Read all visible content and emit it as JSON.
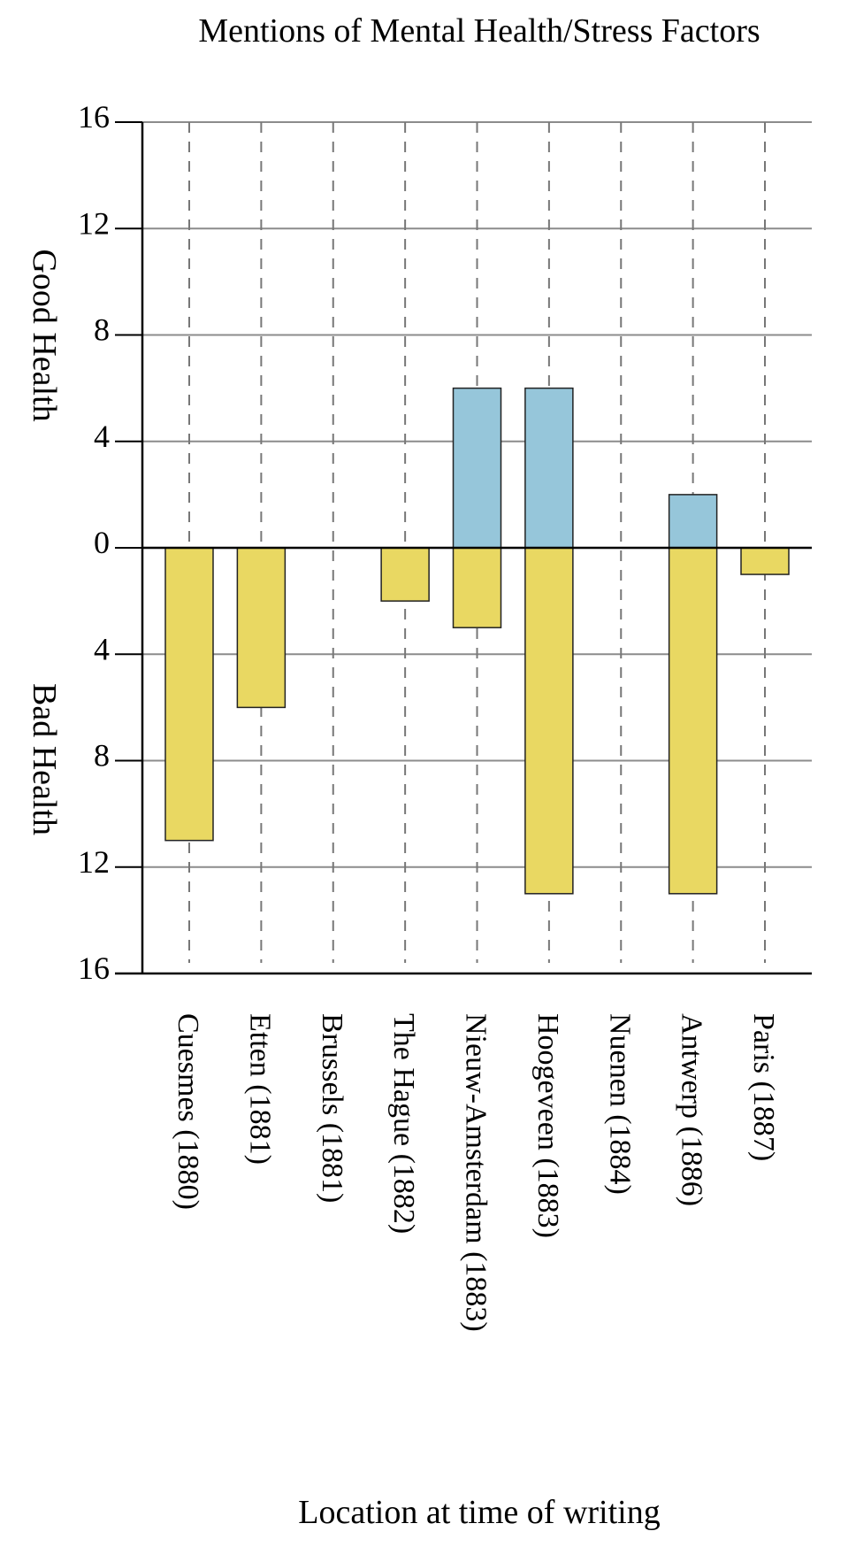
{
  "chart_data": {
    "type": "bar",
    "title": "Mentions of Mental Health/Stress Factors",
    "xlabel": "Location at time of writing",
    "ylabel_top": "Good Health",
    "ylabel_bottom": "Bad Health",
    "ylim": [
      -16,
      16
    ],
    "yticks": [
      16,
      12,
      8,
      4,
      0,
      -4,
      -8,
      -12,
      -16
    ],
    "ytick_labels": [
      "16",
      "12",
      "8",
      "4",
      "0",
      "4",
      "8",
      "12",
      "16"
    ],
    "categories": [
      "Cuesmes (1880)",
      "Etten (1881)",
      "Brussels (1881)",
      "The Hague (1882)",
      "Nieuw-Amsterdam (1883)",
      "Hoogeveen (1883)",
      "Nuenen (1884)",
      "Antwerp (1886)",
      "Paris (1887)"
    ],
    "series": [
      {
        "values": [
          0,
          0,
          0,
          0,
          6,
          6,
          0,
          2,
          0
        ],
        "color": "#96c6da"
      },
      {
        "values": [
          -11,
          -6,
          0,
          -2,
          -3,
          -13,
          0,
          -13,
          -1
        ],
        "color": "#e9d862"
      }
    ],
    "grid": true,
    "legend": "none"
  }
}
